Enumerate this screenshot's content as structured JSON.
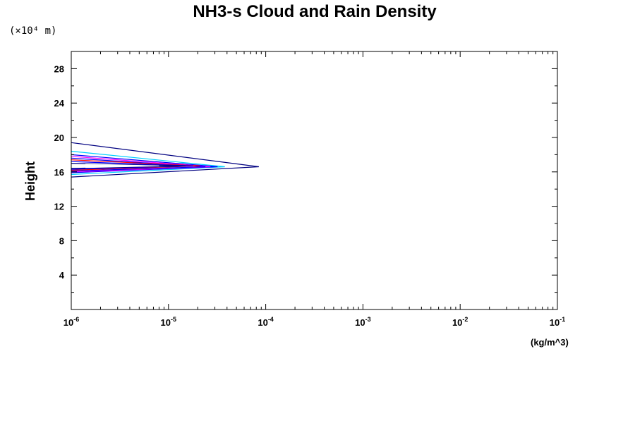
{
  "chart_data": {
    "type": "line",
    "title": "NH3-s Cloud and Rain Density",
    "y_unit_label": "(×10⁴ m)",
    "ylabel": "Height",
    "xlabel": "(kg/m^3)",
    "x_scale": "log",
    "xlim": [
      1e-06,
      0.1
    ],
    "ylim": [
      0,
      30
    ],
    "x_ticks": [
      {
        "base": "10",
        "exp": "-6"
      },
      {
        "base": "10",
        "exp": "-5"
      },
      {
        "base": "10",
        "exp": "-4"
      },
      {
        "base": "10",
        "exp": "-3"
      },
      {
        "base": "10",
        "exp": "-2"
      },
      {
        "base": "10",
        "exp": "-1"
      }
    ],
    "y_ticks": [
      "4",
      "8",
      "12",
      "16",
      "20",
      "24",
      "28"
    ],
    "grid": false,
    "series": [
      {
        "color": "#000080",
        "points": [
          [
            1e-06,
            19.4
          ],
          [
            8.5e-05,
            16.6
          ],
          [
            1e-06,
            15.4
          ]
        ]
      },
      {
        "color": "#00d0ff",
        "points": [
          [
            1e-06,
            18.4
          ],
          [
            3.8e-05,
            16.6
          ],
          [
            1e-06,
            15.7
          ]
        ]
      },
      {
        "color": "#0000ff",
        "points": [
          [
            1e-06,
            18.0
          ],
          [
            3.2e-05,
            16.6
          ],
          [
            1e-06,
            15.9
          ]
        ]
      },
      {
        "color": "#ff00ff",
        "points": [
          [
            1e-06,
            17.8
          ],
          [
            2.7e-05,
            16.6
          ],
          [
            1e-06,
            16.0
          ]
        ]
      },
      {
        "color": "#0000ff",
        "points": [
          [
            1e-06,
            17.6
          ],
          [
            2.4e-05,
            16.6
          ],
          [
            1e-06,
            16.1
          ]
        ]
      },
      {
        "color": "#ff0000",
        "points": [
          [
            1e-06,
            17.4
          ],
          [
            2.1e-05,
            16.7
          ],
          [
            1e-06,
            16.2
          ]
        ]
      },
      {
        "color": "#0000ff",
        "points": [
          [
            1e-06,
            17.2
          ],
          [
            1.8e-05,
            16.7
          ],
          [
            1e-06,
            16.3
          ]
        ]
      },
      {
        "color": "#000080",
        "points": [
          [
            1e-06,
            17.0
          ],
          [
            1.5e-05,
            16.7
          ],
          [
            1e-06,
            16.4
          ]
        ]
      },
      {
        "color": "#ffffff",
        "points": [
          [
            1.4e-06,
            16.9
          ],
          [
            8e-06,
            16.7
          ],
          [
            1.4e-06,
            16.5
          ]
        ]
      }
    ]
  }
}
